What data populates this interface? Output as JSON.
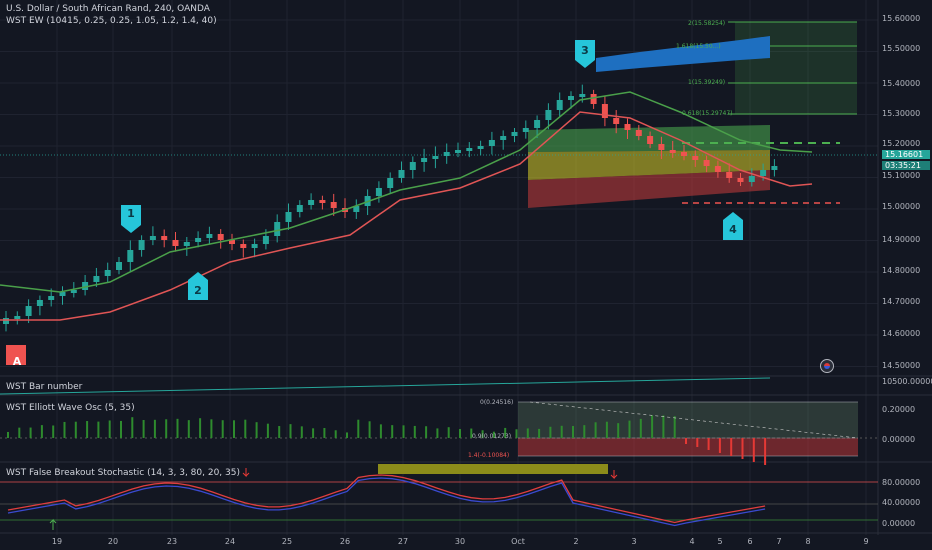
{
  "header": {
    "symbol_line": "U.S. Dollar / South African Rand, 240, OANDA",
    "indicator_line": "WST EW (10415, 0.25, 0.25, 1.05, 1.2, 1.4, 40)"
  },
  "price_axis": {
    "labels": [
      "15.60000",
      "15.50000",
      "15.40000",
      "15.30000",
      "15.20000",
      "15.10000",
      "15.00000",
      "14.90000",
      "14.80000",
      "14.70000",
      "14.60000",
      "14.50000"
    ],
    "current_price": "15.16601",
    "countdown": "03:35:21"
  },
  "time_axis": {
    "labels": [
      "19",
      "20",
      "23",
      "24",
      "25",
      "26",
      "27",
      "30",
      "Oct",
      "2",
      "3",
      "4",
      "5",
      "6",
      "7",
      "8",
      "9"
    ]
  },
  "waves": {
    "a": "A",
    "w1": "1",
    "w2": "2",
    "w3": "3",
    "w4": "4"
  },
  "fib_targets": {
    "l2": "2(15.58254)",
    "l1618": "1.618(15.50...)",
    "l1": "1(15.39249)",
    "l0618": "0.618(15.29747)"
  },
  "panes": {
    "bar_number": {
      "title": "WST Bar number",
      "axis_label": "10500.00000"
    },
    "elliott_osc": {
      "title": "WST Elliott Wave Osc (5, 35)",
      "axis": [
        "0.20000",
        "0.00000"
      ],
      "levels": [
        "0(0.24516)",
        "0.9(0.01273)",
        "1.4(-0.10084)"
      ]
    },
    "stochastic": {
      "title": "WST False Breakout Stochastic (14, 3, 3, 80, 20, 35)",
      "axis": [
        "80.00000",
        "40.00000",
        "0.00000"
      ]
    }
  },
  "colors": {
    "bg": "#131722",
    "up": "#26a69a",
    "down": "#ef5350",
    "ma_green": "#3a8a3a",
    "ma_red": "#e05050",
    "accent_blue": "#1e88e5",
    "badge_teal": "#26c6da"
  }
}
